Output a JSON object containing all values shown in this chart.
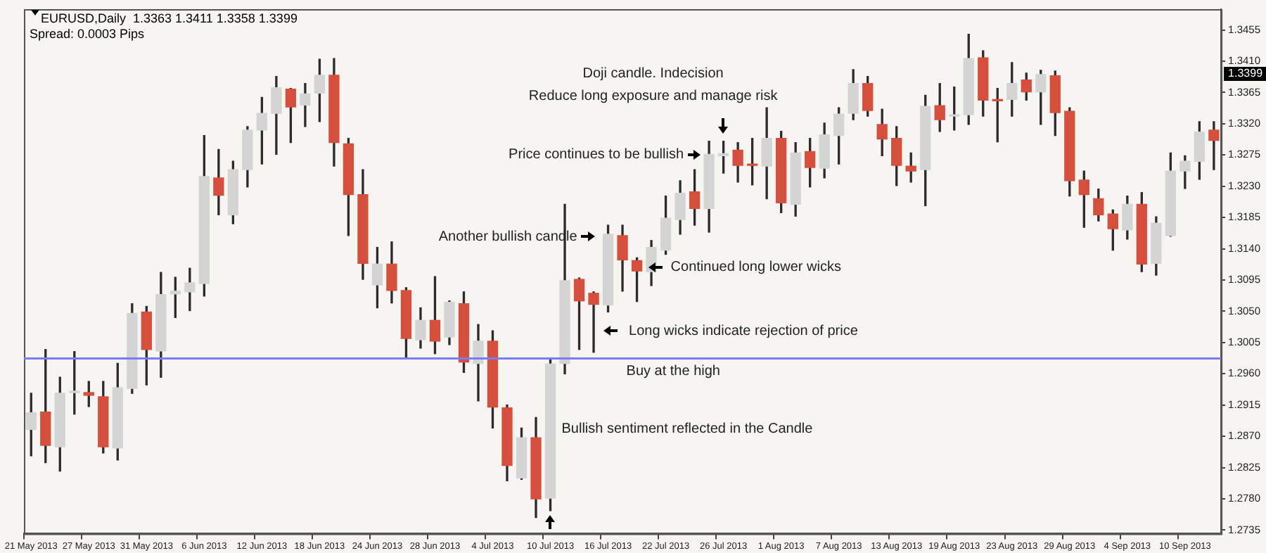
{
  "chart_data": {
    "type": "candlestick",
    "title": "EURUSD,Daily  1.3363 1.3411 1.3358 1.3399",
    "subtitle": "Spread: 0.0003 Pips",
    "categories": [
      "21 May 2013",
      null,
      null,
      null,
      "27 May 2013",
      null,
      null,
      null,
      "31 May 2013",
      null,
      null,
      null,
      "6 Jun 2013",
      null,
      null,
      null,
      "12 Jun 2013",
      null,
      null,
      null,
      "18 Jun 2013",
      null,
      null,
      null,
      "24 Jun 2013",
      null,
      null,
      null,
      "28 Jun 2013",
      null,
      null,
      null,
      "4 Jul 2013",
      null,
      null,
      null,
      "10 Jul 2013",
      null,
      null,
      null,
      "16 Jul 2013",
      null,
      null,
      null,
      "22 Jul 2013",
      null,
      null,
      null,
      "26 Jul 2013",
      null,
      null,
      null,
      "1 Aug 2013",
      null,
      null,
      null,
      "7 Aug 2013",
      null,
      null,
      null,
      "13 Aug 2013",
      null,
      null,
      null,
      "19 Aug 2013",
      null,
      null,
      null,
      "23 Aug 2013",
      null,
      null,
      null,
      "29 Aug 2013",
      null,
      null,
      null,
      "4 Sep 2013",
      null,
      null,
      null,
      "10 Sep 2013",
      null,
      null
    ],
    "ohlc": [
      [
        1.288,
        1.2932,
        1.2842,
        1.2904
      ],
      [
        1.2905,
        1.2995,
        1.2832,
        1.2857
      ],
      [
        1.2855,
        1.2955,
        1.282,
        1.2932
      ],
      [
        1.2933,
        1.2992,
        1.2902,
        1.2934
      ],
      [
        1.2933,
        1.2949,
        1.2913,
        1.2929
      ],
      [
        1.2927,
        1.2949,
        1.2846,
        1.2855
      ],
      [
        1.2853,
        1.2975,
        1.2836,
        1.294
      ],
      [
        1.2939,
        1.3061,
        1.2932,
        1.3047
      ],
      [
        1.3049,
        1.3057,
        1.2944,
        1.2995
      ],
      [
        1.2993,
        1.3106,
        1.2955,
        1.3074
      ],
      [
        1.3075,
        1.3099,
        1.3041,
        1.3079
      ],
      [
        1.3078,
        1.3112,
        1.3051,
        1.3091
      ],
      [
        1.309,
        1.3303,
        1.3072,
        1.3244
      ],
      [
        1.3242,
        1.3283,
        1.3189,
        1.3217
      ],
      [
        1.3189,
        1.3266,
        1.3176,
        1.3254
      ],
      [
        1.3254,
        1.3316,
        1.3229,
        1.3311
      ],
      [
        1.3311,
        1.3358,
        1.3262,
        1.3335
      ],
      [
        1.3335,
        1.3388,
        1.3276,
        1.3372
      ],
      [
        1.337,
        1.3371,
        1.3293,
        1.3344
      ],
      [
        1.3347,
        1.3378,
        1.3316,
        1.3363
      ],
      [
        1.3364,
        1.3413,
        1.3323,
        1.339
      ],
      [
        1.339,
        1.3414,
        1.3259,
        1.3293
      ],
      [
        1.3291,
        1.3299,
        1.3159,
        1.3218
      ],
      [
        1.3218,
        1.3254,
        1.3096,
        1.3119
      ],
      [
        1.3088,
        1.3142,
        1.3055,
        1.3118
      ],
      [
        1.3118,
        1.315,
        1.3062,
        1.308
      ],
      [
        1.308,
        1.3084,
        1.2982,
        1.3011
      ],
      [
        1.3009,
        1.3055,
        1.2997,
        1.3037
      ],
      [
        1.3037,
        1.31,
        1.2989,
        1.3007
      ],
      [
        1.3013,
        1.3065,
        1.3002,
        1.3063
      ],
      [
        1.3061,
        1.3078,
        1.2962,
        1.2977
      ],
      [
        1.2975,
        1.3031,
        1.2921,
        1.3007
      ],
      [
        1.3007,
        1.3022,
        1.2882,
        1.2912
      ],
      [
        1.2911,
        1.2915,
        1.2806,
        1.2828
      ],
      [
        1.281,
        1.2882,
        1.2808,
        1.2868
      ],
      [
        1.2868,
        1.2897,
        1.2753,
        1.278
      ],
      [
        1.2781,
        1.2982,
        1.2763,
        1.2974
      ],
      [
        1.2975,
        1.3204,
        1.296,
        1.3094
      ],
      [
        1.3096,
        1.3098,
        1.2995,
        1.3065
      ],
      [
        1.3076,
        1.3078,
        1.2991,
        1.306
      ],
      [
        1.3059,
        1.3174,
        1.3049,
        1.3161
      ],
      [
        1.3159,
        1.3174,
        1.3079,
        1.3124
      ],
      [
        1.3123,
        1.3127,
        1.3064,
        1.3108
      ],
      [
        1.3107,
        1.3152,
        1.3087,
        1.3142
      ],
      [
        1.3138,
        1.3216,
        1.3132,
        1.3184
      ],
      [
        1.3182,
        1.3238,
        1.3161,
        1.322
      ],
      [
        1.3222,
        1.3254,
        1.3174,
        1.3198
      ],
      [
        1.3198,
        1.3295,
        1.3164,
        1.3276
      ],
      [
        1.3274,
        1.3295,
        1.3249,
        1.3277
      ],
      [
        1.3282,
        1.3293,
        1.3236,
        1.326
      ],
      [
        1.3261,
        1.3299,
        1.3232,
        1.326
      ],
      [
        1.3259,
        1.3343,
        1.3212,
        1.3299
      ],
      [
        1.3299,
        1.3309,
        1.3192,
        1.3206
      ],
      [
        1.3204,
        1.3293,
        1.3187,
        1.3278
      ],
      [
        1.328,
        1.3299,
        1.3229,
        1.3257
      ],
      [
        1.3256,
        1.3321,
        1.3242,
        1.3304
      ],
      [
        1.3303,
        1.3343,
        1.3262,
        1.3334
      ],
      [
        1.3335,
        1.3398,
        1.3326,
        1.3378
      ],
      [
        1.3378,
        1.3388,
        1.3331,
        1.3339
      ],
      [
        1.3319,
        1.3341,
        1.3274,
        1.3298
      ],
      [
        1.3299,
        1.3316,
        1.3231,
        1.326
      ],
      [
        1.3259,
        1.3278,
        1.3236,
        1.3252
      ],
      [
        1.3254,
        1.3361,
        1.3202,
        1.3345
      ],
      [
        1.3346,
        1.3378,
        1.3309,
        1.3326
      ],
      [
        1.3331,
        1.3373,
        1.3311,
        1.3332
      ],
      [
        1.3333,
        1.3449,
        1.3319,
        1.3414
      ],
      [
        1.3415,
        1.3425,
        1.3331,
        1.3354
      ],
      [
        1.3354,
        1.3371,
        1.3294,
        1.3353
      ],
      [
        1.3355,
        1.3408,
        1.3331,
        1.3378
      ],
      [
        1.3383,
        1.3393,
        1.3354,
        1.3366
      ],
      [
        1.3366,
        1.3397,
        1.3319,
        1.3391
      ],
      [
        1.3389,
        1.3396,
        1.3303,
        1.3336
      ],
      [
        1.3338,
        1.3343,
        1.3216,
        1.3238
      ],
      [
        1.3239,
        1.3252,
        1.3171,
        1.3218
      ],
      [
        1.3212,
        1.3226,
        1.318,
        1.3189
      ],
      [
        1.319,
        1.3196,
        1.3138,
        1.3169
      ],
      [
        1.3167,
        1.3216,
        1.3154,
        1.3204
      ],
      [
        1.3204,
        1.3221,
        1.3107,
        1.3118
      ],
      [
        1.3119,
        1.3186,
        1.3102,
        1.3177
      ],
      [
        1.3159,
        1.3278,
        1.3158,
        1.3252
      ],
      [
        1.3252,
        1.3274,
        1.3227,
        1.3266
      ],
      [
        1.3266,
        1.3323,
        1.324,
        1.3308
      ],
      [
        1.3311,
        1.3323,
        1.3254,
        1.3296
      ]
    ],
    "colors": [
      "#d4d4d4",
      "#d64f3c",
      "#d4d4d4",
      "#d4d4d4",
      "#d64f3c",
      "#d64f3c",
      "#d4d4d4",
      "#d4d4d4",
      "#d64f3c",
      "#d4d4d4",
      "#d4d4d4",
      "#d4d4d4",
      "#d4d4d4",
      "#d64f3c",
      "#d4d4d4",
      "#d4d4d4",
      "#d4d4d4",
      "#d4d4d4",
      "#d64f3c",
      "#d4d4d4",
      "#d4d4d4",
      "#d64f3c",
      "#d64f3c",
      "#d64f3c",
      "#d4d4d4",
      "#d64f3c",
      "#d64f3c",
      "#d4d4d4",
      "#d64f3c",
      "#d4d4d4",
      "#d64f3c",
      "#d4d4d4",
      "#d64f3c",
      "#d64f3c",
      "#d4d4d4",
      "#d64f3c",
      "#d4d4d4",
      "#d4d4d4",
      "#d64f3c",
      "#d64f3c",
      "#d4d4d4",
      "#d64f3c",
      "#d64f3c",
      "#d4d4d4",
      "#d4d4d4",
      "#d4d4d4",
      "#d64f3c",
      "#d4d4d4",
      "#d4d4d4",
      "#d64f3c",
      "#d64f3c",
      "#d4d4d4",
      "#d64f3c",
      "#d4d4d4",
      "#d64f3c",
      "#d4d4d4",
      "#d4d4d4",
      "#d4d4d4",
      "#d64f3c",
      "#d64f3c",
      "#d64f3c",
      "#d64f3c",
      "#d4d4d4",
      "#d64f3c",
      "#d4d4d4",
      "#d4d4d4",
      "#d64f3c",
      "#d64f3c",
      "#d4d4d4",
      "#d64f3c",
      "#d4d4d4",
      "#d64f3c",
      "#d64f3c",
      "#d64f3c",
      "#d64f3c",
      "#d64f3c",
      "#d4d4d4",
      "#d64f3c",
      "#d4d4d4",
      "#d4d4d4",
      "#d4d4d4",
      "#d4d4d4",
      "#d64f3c"
    ],
    "ylim": [
      1.273,
      1.3485
    ],
    "yticks": [
      1.2735,
      {
        "value": 1.278,
        "label": "1.2780"
      },
      1.2825,
      {
        "value": 1.287,
        "label": "1.2870"
      },
      1.2915,
      {
        "value": 1.296,
        "label": "1.2960"
      },
      1.3005,
      {
        "value": 1.305,
        "label": "1.3050"
      },
      1.3095,
      {
        "value": 1.314,
        "label": "1.3140"
      },
      1.3185,
      {
        "value": 1.323,
        "label": "1.3230"
      },
      1.3275,
      {
        "value": 1.332,
        "label": "1.3320"
      },
      1.3365,
      {
        "value": 1.341,
        "label": "1.3410"
      },
      1.3455
    ],
    "ref_lines": [
      {
        "axis": "y",
        "value": 1.2982,
        "label": "Buy at the high",
        "color": "#7b7bf5"
      }
    ],
    "annotations": [
      "Doji candle. Indecision",
      "Reduce long exposure and manage risk",
      "Price continues to be bullish",
      "Another bullish candle",
      "Continued long lower wicks",
      "Long wicks indicate rejection of price",
      "Bullish sentiment reflected in the Candle",
      "1.3399"
    ]
  }
}
